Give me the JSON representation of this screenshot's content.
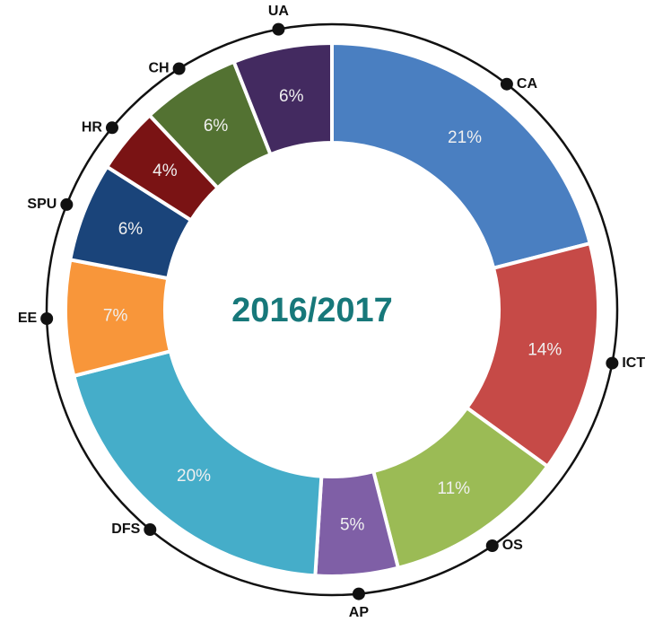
{
  "chart_data": {
    "type": "donut",
    "title": "2016/2017",
    "categories": [
      "CA",
      "ICT",
      "OS",
      "AP",
      "DFS",
      "EE",
      "SPU",
      "HR",
      "CH",
      "UA"
    ],
    "values": [
      21,
      14,
      11,
      5,
      20,
      7,
      6,
      4,
      6,
      6
    ],
    "value_labels": [
      "21%",
      "14%",
      "11%",
      "5%",
      "20%",
      "7%",
      "6%",
      "4%",
      "6%",
      "6%"
    ],
    "colors": [
      "#4a7fc1",
      "#c64a47",
      "#9bbb55",
      "#7f5fa6",
      "#45adc9",
      "#f8963a",
      "#1a447a",
      "#7a1314",
      "#537232",
      "#432a60"
    ]
  }
}
